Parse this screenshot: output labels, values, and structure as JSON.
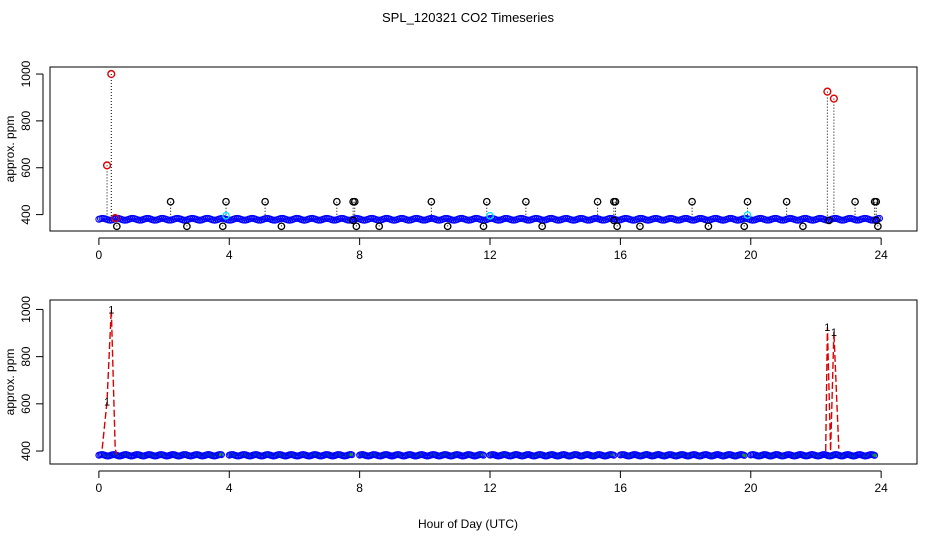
{
  "title": "SPL_120321  CO2 Timeseries",
  "xlabel": "Hour of Day (UTC)",
  "colors": {
    "baseline": "#0000ff",
    "calibration": "#00e5ff",
    "overflow": "#dd0000",
    "flag": "#000000",
    "low": "#00aa00"
  },
  "chart_data": [
    {
      "type": "scatter",
      "panel": "top",
      "title": "SPL_120321  CO2 Timeseries",
      "xlabel": "",
      "ylabel": "approx. ppm",
      "xlim": [
        -1.5,
        25.1
      ],
      "ylim": [
        330,
        1030
      ],
      "xticks": [
        0,
        4,
        8,
        12,
        16,
        20,
        24
      ],
      "yticks": [
        400,
        600,
        800,
        1000
      ],
      "baseline": {
        "x_start": 0.0,
        "x_end": 24.0,
        "y": 380,
        "color": "blue",
        "calibration_points_color": "cyan"
      },
      "calibration_points": [
        {
          "x": 3.9,
          "y": 395
        },
        {
          "x": 12.0,
          "y": 395
        },
        {
          "x": 19.9,
          "y": 398
        }
      ],
      "spikes": [
        {
          "x": 0.25,
          "y": 610
        },
        {
          "x": 0.38,
          "y": 1000
        },
        {
          "x": 0.5,
          "y": 385
        },
        {
          "x": 22.35,
          "y": 925
        },
        {
          "x": 22.55,
          "y": 895
        }
      ],
      "flag_points_high": [
        {
          "x": 2.2,
          "y": 455
        },
        {
          "x": 3.9,
          "y": 455
        },
        {
          "x": 5.1,
          "y": 455
        },
        {
          "x": 7.3,
          "y": 455
        },
        {
          "x": 7.8,
          "y": 455
        },
        {
          "x": 7.85,
          "y": 455
        },
        {
          "x": 10.2,
          "y": 455
        },
        {
          "x": 11.9,
          "y": 455
        },
        {
          "x": 13.1,
          "y": 455
        },
        {
          "x": 15.3,
          "y": 455
        },
        {
          "x": 15.8,
          "y": 455
        },
        {
          "x": 15.85,
          "y": 455
        },
        {
          "x": 18.2,
          "y": 455
        },
        {
          "x": 19.9,
          "y": 455
        },
        {
          "x": 21.1,
          "y": 455
        },
        {
          "x": 23.2,
          "y": 455
        },
        {
          "x": 23.8,
          "y": 455
        },
        {
          "x": 23.85,
          "y": 455
        }
      ],
      "flag_points_low": [
        {
          "x": 0.55,
          "y": 350
        },
        {
          "x": 2.7,
          "y": 350
        },
        {
          "x": 3.8,
          "y": 350
        },
        {
          "x": 5.6,
          "y": 350
        },
        {
          "x": 7.9,
          "y": 350
        },
        {
          "x": 8.6,
          "y": 350
        },
        {
          "x": 10.7,
          "y": 350
        },
        {
          "x": 11.8,
          "y": 350
        },
        {
          "x": 13.6,
          "y": 350
        },
        {
          "x": 15.9,
          "y": 350
        },
        {
          "x": 16.6,
          "y": 350
        },
        {
          "x": 18.7,
          "y": 350
        },
        {
          "x": 19.8,
          "y": 350
        },
        {
          "x": 21.6,
          "y": 350
        },
        {
          "x": 23.9,
          "y": 350
        }
      ],
      "flag_points_mid": [
        {
          "x": 7.8,
          "y": 375
        },
        {
          "x": 15.8,
          "y": 375
        },
        {
          "x": 22.4,
          "y": 375
        },
        {
          "x": 23.85,
          "y": 375
        }
      ]
    },
    {
      "type": "line",
      "panel": "bottom",
      "xlabel": "Hour of Day (UTC)",
      "ylabel": "approx. ppm",
      "xlim": [
        -1.5,
        25.1
      ],
      "ylim": [
        345,
        1040
      ],
      "xticks": [
        0,
        4,
        8,
        12,
        16,
        20,
        24
      ],
      "yticks": [
        400,
        600,
        800,
        1000
      ],
      "point_label": "1",
      "segments": [
        {
          "x_start": 0.0,
          "x_end": 3.8,
          "y": 382
        },
        {
          "x_start": 4.0,
          "x_end": 7.8,
          "y": 382
        },
        {
          "x_start": 8.0,
          "x_end": 11.8,
          "y": 382
        },
        {
          "x_start": 12.0,
          "x_end": 15.8,
          "y": 382
        },
        {
          "x_start": 16.0,
          "x_end": 19.8,
          "y": 382
        },
        {
          "x_start": 20.0,
          "x_end": 23.8,
          "y": 382
        }
      ],
      "red_series": [
        {
          "x": 0.1,
          "y": 410
        },
        {
          "x": 0.25,
          "y": 610
        },
        {
          "x": 0.38,
          "y": 1000
        },
        {
          "x": 0.5,
          "y": 410
        },
        {
          "x": 0.55,
          "y": 385
        },
        {
          "x": 22.3,
          "y": 400
        },
        {
          "x": 22.35,
          "y": 925
        },
        {
          "x": 22.45,
          "y": 400
        },
        {
          "x": 22.55,
          "y": 905
        },
        {
          "x": 22.7,
          "y": 410
        }
      ],
      "red_labels": [
        {
          "x": 0.25,
          "y": 610
        },
        {
          "x": 0.38,
          "y": 1000
        },
        {
          "x": 22.35,
          "y": 925
        },
        {
          "x": 22.55,
          "y": 905
        }
      ]
    }
  ]
}
